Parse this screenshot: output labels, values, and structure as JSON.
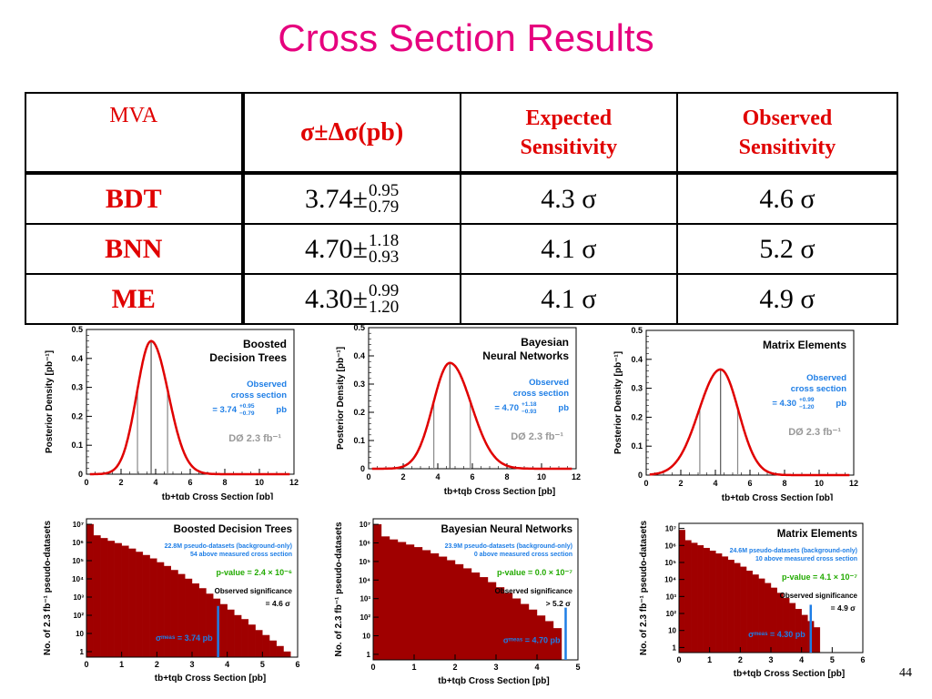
{
  "title": "Cross Section Results",
  "table": {
    "headers": {
      "mva": "MVA",
      "sigma": "σ±Δσ(pb)",
      "expected": [
        "Expected",
        "Sensitivity"
      ],
      "observed": [
        "Observed",
        "Sensitivity"
      ]
    },
    "rows": [
      {
        "name": "BDT",
        "value": "3.74",
        "sym": "±",
        "up": "0.95",
        "down": "0.79",
        "expected": "4.3 σ",
        "observed": "4.6 σ"
      },
      {
        "name": "BNN",
        "value": "4.70",
        "sym": "±",
        "up": "1.18",
        "down": "0.93",
        "expected": "4.1 σ",
        "observed": "5.2 σ"
      },
      {
        "name": "ME",
        "value": "4.30",
        "sym": "±",
        "up": "0.99",
        "down": "1.20",
        "expected": "4.1 σ",
        "observed": "4.9 σ"
      }
    ]
  },
  "page_number": "44",
  "colors": {
    "title": "#e6007e",
    "table_text": "#e00000",
    "curve": "#e00000",
    "hist": "#a00000",
    "annot_blue": "#1e7ee6",
    "pvalue_green": "#22aa00",
    "dzero_gray": "#999999"
  },
  "chart_data": [
    {
      "type": "line",
      "title": [
        "Boosted",
        "Decision Trees"
      ],
      "xlabel": "tb+tqb  Cross Section  [pb]",
      "ylabel": "Posterior Density  [pb⁻¹]",
      "xlim": [
        0,
        12
      ],
      "ylim": [
        0,
        0.5
      ],
      "xticks": [
        "0",
        "2",
        "4",
        "6",
        "8",
        "10",
        "12"
      ],
      "yticks": [
        "0",
        "0.1",
        "0.2",
        "0.3",
        "0.4",
        "0.5"
      ],
      "peak": 3.74,
      "peak_y": 0.46,
      "sigma_up": 0.95,
      "sigma_down": 0.79,
      "annotation": [
        "Observed",
        "cross section",
        "= 3.74",
        "+0.95",
        "−0.79",
        "pb"
      ],
      "dzero": "DØ  2.3 fb⁻¹"
    },
    {
      "type": "line",
      "title": [
        "Bayesian",
        "Neural Networks"
      ],
      "xlabel": "tb+tqb  Cross Section  [pb]",
      "ylabel": "Posterior Density  [pb⁻¹]",
      "xlim": [
        0,
        12
      ],
      "ylim": [
        0,
        0.5
      ],
      "xticks": [
        "0",
        "2",
        "4",
        "6",
        "8",
        "10",
        "12"
      ],
      "yticks": [
        "0",
        "0.1",
        "0.2",
        "0.3",
        "0.4",
        "0.5"
      ],
      "peak": 4.7,
      "peak_y": 0.375,
      "sigma_up": 1.18,
      "sigma_down": 0.93,
      "annotation": [
        "Observed",
        "cross section",
        "= 4.70",
        "+1.18",
        "−0.93",
        "pb"
      ],
      "dzero": "DØ  2.3 fb⁻¹"
    },
    {
      "type": "line",
      "title": [
        "Matrix Elements"
      ],
      "xlabel": "tb+tqb  Cross Section  [pb]",
      "ylabel": "Posterior Density  [pb⁻¹]",
      "xlim": [
        0,
        12
      ],
      "ylim": [
        0,
        0.5
      ],
      "xticks": [
        "0",
        "2",
        "4",
        "6",
        "8",
        "10",
        "12"
      ],
      "yticks": [
        "0",
        "0.1",
        "0.2",
        "0.3",
        "0.4",
        "0.5"
      ],
      "peak": 4.3,
      "peak_y": 0.365,
      "sigma_up": 0.99,
      "sigma_down": 1.2,
      "annotation": [
        "Observed",
        "cross section",
        "= 4.30",
        "+0.99",
        "−1.20",
        "pb"
      ],
      "dzero": "DØ  2.3 fb⁻¹"
    },
    {
      "type": "bar",
      "title": "Boosted Decision Trees",
      "xlabel": "tb+tqb Cross Section  [pb]",
      "ylabel": "No. of 2.3 fb⁻¹ pseudo-datasets",
      "xlim": [
        0,
        6
      ],
      "ylog": true,
      "xticks": [
        "0",
        "1",
        "2",
        "3",
        "4",
        "5",
        "6"
      ],
      "yticks": [
        "1",
        "10",
        "10²",
        "10³",
        "10⁴",
        "10⁵",
        "10⁶",
        "10⁷"
      ],
      "bin_width": 0.2,
      "values": [
        10000000,
        2400000,
        1700000,
        1200000,
        900000,
        650000,
        450000,
        300000,
        200000,
        130000,
        80000,
        50000,
        30000,
        18000,
        10000,
        5500,
        3000,
        1500,
        800,
        400,
        200,
        100,
        60,
        30,
        15,
        8,
        4,
        2,
        1
      ],
      "measured": 3.74,
      "notes": [
        "22.8M pseudo-datasets (background-only)",
        "54 above measured cross section"
      ],
      "pvalue": "p-value = 2.4 × 10⁻⁶",
      "obs": [
        "Observed significance",
        "= 4.6 σ"
      ],
      "meas_label": "σᵐᵉᵃˢ = 3.74 pb"
    },
    {
      "type": "bar",
      "title": "Bayesian Neural Networks",
      "xlabel": "tb+tqb Cross Section  [pb]",
      "ylabel": "No. of 2.3 fb⁻¹ pseudo-datasets",
      "xlim": [
        0,
        5
      ],
      "ylog": true,
      "xticks": [
        "0",
        "1",
        "2",
        "3",
        "4",
        "5"
      ],
      "yticks": [
        "1",
        "10",
        "10²",
        "10³",
        "10⁴",
        "10⁵",
        "10⁶",
        "10⁷"
      ],
      "bin_width": 0.2,
      "values": [
        10000000,
        2200000,
        1500000,
        1100000,
        800000,
        580000,
        400000,
        270000,
        180000,
        115000,
        70000,
        42000,
        25000,
        14000,
        7500,
        4000,
        2000,
        1000,
        500,
        250,
        120,
        60,
        25
      ],
      "measured": 4.7,
      "notes": [
        "23.9M pseudo-datasets (background-only)",
        "0 above measured cross section"
      ],
      "pvalue": "p-value = 0.0 × 10⁻⁷",
      "obs": [
        "Observed significance",
        "> 5.2 σ"
      ],
      "meas_label": "σᵐᵉᵃˢ = 4.70 pb"
    },
    {
      "type": "bar",
      "title": "Matrix Elements",
      "xlabel": "tb+tqb Cross Section  [pb]",
      "ylabel": "No. of 2.3 fb⁻¹ pseudo-datasets",
      "xlim": [
        0,
        6
      ],
      "ylog": true,
      "xticks": [
        "0",
        "1",
        "2",
        "3",
        "4",
        "5",
        "6"
      ],
      "yticks": [
        "1",
        "10",
        "10²",
        "10³",
        "10⁴",
        "10⁵",
        "10⁶",
        "10⁷"
      ],
      "bin_width": 0.2,
      "values": [
        8000000,
        2000000,
        1400000,
        1000000,
        700000,
        480000,
        330000,
        220000,
        140000,
        90000,
        55000,
        32000,
        19000,
        11000,
        6000,
        3200,
        1600,
        800,
        400,
        180,
        80,
        35,
        15
      ],
      "measured": 4.3,
      "notes": [
        "24.6M pseudo-datasets (background-only)",
        "10 above measured cross section"
      ],
      "pvalue": "p-value = 4.1 × 10⁻⁷",
      "obs": [
        "Observed significance",
        "= 4.9 σ"
      ],
      "meas_label": "σᵐᵉᵃˢ = 4.30 pb"
    }
  ]
}
